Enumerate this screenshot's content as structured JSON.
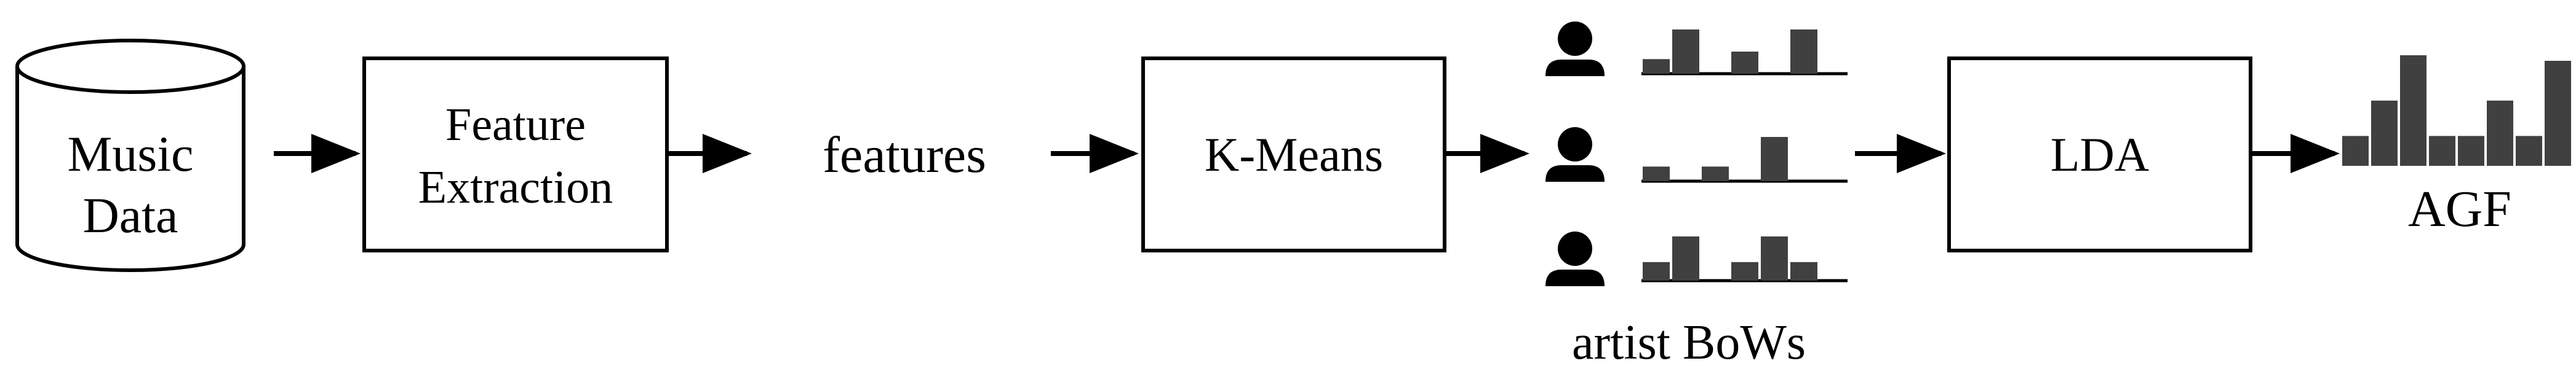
{
  "nodes": {
    "music_data": {
      "line1": "Music",
      "line2": "Data"
    },
    "feature_extraction": {
      "line1": "Feature",
      "line2": "Extraction"
    },
    "features": {
      "label": "features"
    },
    "kmeans": {
      "label": "K-Means"
    },
    "artist_bows": {
      "label": "artist BoWs"
    },
    "lda": {
      "label": "LDA"
    },
    "agf": {
      "label": "AGF"
    }
  },
  "histograms": {
    "artist_bow_1": [
      0.33,
      1.0,
      0.0,
      0.5,
      0.0,
      1.0
    ],
    "artist_bow_2": [
      0.33,
      0.0,
      0.33,
      0.0,
      1.0,
      0.0
    ],
    "artist_bow_3": [
      0.42,
      1.0,
      0.0,
      0.42,
      1.0,
      0.42
    ],
    "agf": [
      0.27,
      0.59,
      1.0,
      0.27,
      0.27,
      0.59,
      0.27,
      0.95
    ]
  },
  "colors": {
    "stroke": "#000000",
    "bar": "#404040",
    "icon": "#000000"
  },
  "icons": {
    "artist_icon": "person-icon"
  }
}
